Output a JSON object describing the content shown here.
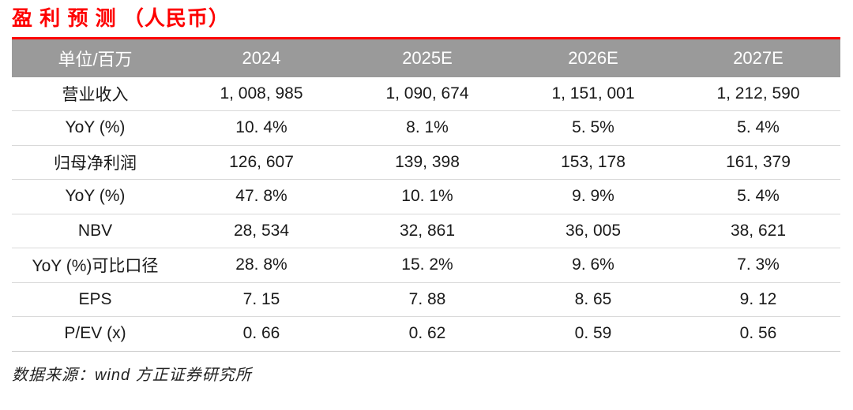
{
  "page": {
    "title": "盈 利 预 测  （人民币）",
    "source_note": "数据来源：wind 方正证券研究所"
  },
  "colors": {
    "accent_red": "#fe0000",
    "header_bg": "#9a9a9a",
    "header_text": "#ffffff",
    "body_text": "#1a1a1a",
    "row_divider": "#d9d9d9"
  },
  "chart_data": {
    "type": "table",
    "title": "盈利预测（人民币）",
    "columns": [
      "单位/百万",
      "2024",
      "2025E",
      "2026E",
      "2027E"
    ],
    "rows": [
      {
        "label": "营业收入",
        "values": [
          "1, 008, 985",
          "1, 090, 674",
          "1, 151, 001",
          "1, 212, 590"
        ]
      },
      {
        "label": "YoY (%)",
        "values": [
          "10. 4%",
          "8. 1%",
          "5. 5%",
          "5. 4%"
        ]
      },
      {
        "label": "归母净利润",
        "values": [
          "126, 607",
          "139, 398",
          "153, 178",
          "161, 379"
        ]
      },
      {
        "label": "YoY (%)",
        "values": [
          "47. 8%",
          "10. 1%",
          "9. 9%",
          "5. 4%"
        ]
      },
      {
        "label": "NBV",
        "values": [
          "28, 534",
          "32, 861",
          "36, 005",
          "38, 621"
        ]
      },
      {
        "label": "YoY (%)可比口径",
        "values": [
          "28. 8%",
          "15. 2%",
          "9. 6%",
          "7. 3%"
        ]
      },
      {
        "label": "EPS",
        "values": [
          "7. 15",
          "7. 88",
          "8. 65",
          "9. 12"
        ]
      },
      {
        "label": "P/EV (x)",
        "values": [
          "0. 66",
          "0. 62",
          "0. 59",
          "0. 56"
        ]
      }
    ],
    "source": "数据来源：wind 方正证券研究所"
  }
}
